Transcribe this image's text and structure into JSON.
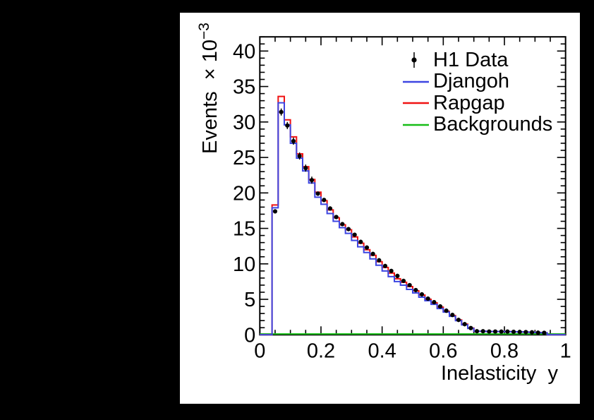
{
  "window": {
    "background_color": "#000000",
    "canvas_color": "#ffffff"
  },
  "chart_data": {
    "type": "line",
    "render_style": "step-histogram-with-data-points",
    "title": "",
    "xlabel": "Inelasticity  y",
    "ylabel": "Events × 10⁻³",
    "ylabel_parts": {
      "base": "Events  × 10",
      "exp": "−3"
    },
    "xlim": [
      0,
      1
    ],
    "ylim": [
      0,
      42
    ],
    "grid": false,
    "x_major_ticks": [
      0,
      0.2,
      0.4,
      0.6,
      0.8,
      1
    ],
    "x_tick_labels": [
      "0",
      "0.2",
      "0.4",
      "0.6",
      "0.8",
      "1"
    ],
    "x_minor_step": 0.05,
    "y_major_ticks": [
      0,
      5,
      10,
      15,
      20,
      25,
      30,
      35,
      40
    ],
    "y_tick_labels": [
      "0",
      "5",
      "10",
      "15",
      "20",
      "25",
      "30",
      "35",
      "40"
    ],
    "y_minor_step": 1,
    "bin_width": 0.02,
    "bin_centers": [
      0.05,
      0.07,
      0.09,
      0.11,
      0.13,
      0.15,
      0.17,
      0.19,
      0.21,
      0.23,
      0.25,
      0.27,
      0.29,
      0.31,
      0.33,
      0.35,
      0.37,
      0.39,
      0.41,
      0.43,
      0.45,
      0.47,
      0.49,
      0.51,
      0.53,
      0.55,
      0.57,
      0.59,
      0.61,
      0.63,
      0.65,
      0.67,
      0.69,
      0.71,
      0.73,
      0.75,
      0.77,
      0.79,
      0.81,
      0.83,
      0.85,
      0.87,
      0.89,
      0.91,
      0.93
    ],
    "series": [
      {
        "name": "H1 Data",
        "style": "points",
        "color": "#000000",
        "values": [
          17.4,
          31.4,
          29.5,
          27.3,
          25.2,
          23.5,
          21.8,
          19.9,
          19.0,
          17.8,
          16.6,
          15.6,
          14.9,
          14.1,
          13.1,
          12.3,
          11.4,
          10.5,
          9.7,
          9.0,
          8.3,
          7.6,
          7.0,
          6.3,
          5.7,
          5.1,
          4.6,
          4.0,
          3.4,
          2.8,
          2.1,
          1.5,
          0.95,
          0.5,
          0.5,
          0.46,
          0.46,
          0.45,
          0.45,
          0.42,
          0.4,
          0.38,
          0.35,
          0.3,
          0.28
        ]
      },
      {
        "name": "Djangoh",
        "style": "step",
        "color": "#3d46e2",
        "values": [
          17.9,
          32.7,
          29.6,
          27.0,
          24.9,
          23.1,
          21.4,
          19.4,
          18.4,
          17.1,
          16.0,
          15.1,
          14.3,
          13.3,
          12.4,
          11.6,
          10.7,
          9.8,
          9.0,
          8.2,
          7.5,
          7.0,
          6.4,
          5.9,
          5.3,
          4.8,
          4.3,
          3.7,
          3.2,
          2.6,
          2.0,
          1.4,
          0.9,
          0.5,
          0.5,
          0.47,
          0.47,
          0.46,
          0.45,
          0.43,
          0.41,
          0.39,
          0.35,
          0.31,
          0.28
        ]
      },
      {
        "name": "Rapgap",
        "style": "step",
        "color": "#f01212",
        "values": [
          18.3,
          33.6,
          30.3,
          27.9,
          25.5,
          23.7,
          21.9,
          20.1,
          18.9,
          17.6,
          16.5,
          15.5,
          14.8,
          13.8,
          12.9,
          12.0,
          11.2,
          10.3,
          9.5,
          8.7,
          7.9,
          7.4,
          6.8,
          6.2,
          5.6,
          5.0,
          4.5,
          3.9,
          3.3,
          2.7,
          2.1,
          1.5,
          0.95,
          0.5,
          0.5,
          0.47,
          0.47,
          0.46,
          0.45,
          0.43,
          0.41,
          0.39,
          0.35,
          0.31,
          0.28
        ]
      },
      {
        "name": "Backgrounds",
        "style": "flat-line",
        "color": "#17bd17",
        "flat_value": 0.12
      }
    ],
    "legend": {
      "position": "top-right",
      "border": false,
      "entries": [
        {
          "label": "H1 Data",
          "sample": "marker",
          "color": "#000000"
        },
        {
          "label": "Djangoh",
          "sample": "line",
          "color": "#3d46e2"
        },
        {
          "label": "Rapgap",
          "sample": "line",
          "color": "#f01212"
        },
        {
          "label": "Backgrounds",
          "sample": "line",
          "color": "#17bd17"
        }
      ]
    }
  }
}
